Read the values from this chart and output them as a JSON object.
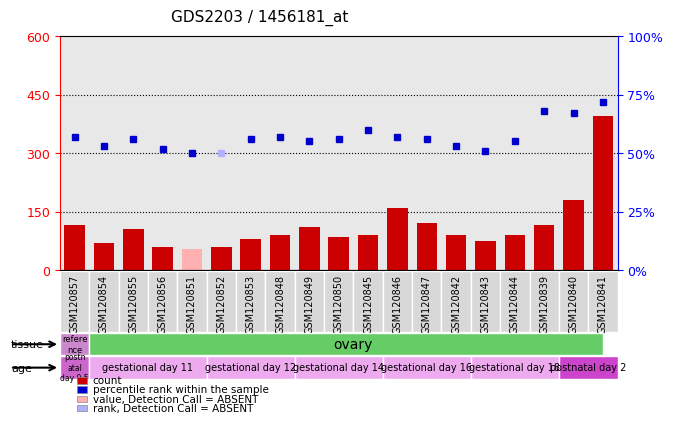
{
  "title": "GDS2203 / 1456181_at",
  "samples": [
    "GSM120857",
    "GSM120854",
    "GSM120855",
    "GSM120856",
    "GSM120851",
    "GSM120852",
    "GSM120853",
    "GSM120848",
    "GSM120849",
    "GSM120850",
    "GSM120845",
    "GSM120846",
    "GSM120847",
    "GSM120842",
    "GSM120843",
    "GSM120844",
    "GSM120839",
    "GSM120840",
    "GSM120841"
  ],
  "counts": [
    115,
    70,
    105,
    60,
    55,
    60,
    80,
    90,
    110,
    85,
    90,
    160,
    120,
    90,
    75,
    90,
    115,
    180,
    395
  ],
  "absent_count_flags": [
    false,
    false,
    false,
    false,
    true,
    false,
    false,
    false,
    false,
    false,
    false,
    false,
    false,
    false,
    false,
    false,
    false,
    false,
    false
  ],
  "percentile_ranks": [
    57,
    53,
    56,
    52,
    50,
    50,
    56,
    57,
    55,
    56,
    60,
    57,
    56,
    53,
    51,
    55,
    68,
    67,
    72
  ],
  "absent_rank_flags": [
    false,
    false,
    false,
    false,
    false,
    true,
    false,
    false,
    false,
    false,
    false,
    false,
    false,
    false,
    false,
    false,
    false,
    false,
    false
  ],
  "ylim_left": [
    0,
    600
  ],
  "ylim_right": [
    0,
    100
  ],
  "yticks_left": [
    0,
    150,
    300,
    450,
    600
  ],
  "yticks_right": [
    0,
    25,
    50,
    75,
    100
  ],
  "hlines": [
    150,
    300,
    450
  ],
  "bar_color_normal": "#cc0000",
  "bar_color_absent": "#ffb0b0",
  "dot_color_normal": "#0000cc",
  "dot_color_absent": "#b0b0ff",
  "tissue_ref_label": "refere\nnce",
  "tissue_ref_color": "#cc88cc",
  "tissue_main_label": "ovary",
  "tissue_main_color": "#66cc66",
  "age_ref_label": "postn\natal\nday 0.5",
  "age_ref_color": "#cc66cc",
  "age_groups": [
    {
      "label": "gestational day 11",
      "color": "#eeaaee",
      "start": 1,
      "end": 4
    },
    {
      "label": "gestational day 12",
      "color": "#eeaaee",
      "start": 5,
      "end": 7
    },
    {
      "label": "gestational day 14",
      "color": "#eeaaee",
      "start": 8,
      "end": 10
    },
    {
      "label": "gestational day 16",
      "color": "#eeaaee",
      "start": 11,
      "end": 13
    },
    {
      "label": "gestational day 18",
      "color": "#eeaaee",
      "start": 14,
      "end": 16
    },
    {
      "label": "postnatal day 2",
      "color": "#cc44cc",
      "start": 17,
      "end": 18
    }
  ],
  "legend_items": [
    {
      "color": "#cc0000",
      "label": "count"
    },
    {
      "color": "#0000cc",
      "label": "percentile rank within the sample"
    },
    {
      "color": "#ffb0b0",
      "label": "value, Detection Call = ABSENT"
    },
    {
      "color": "#b0b0ff",
      "label": "rank, Detection Call = ABSENT"
    }
  ],
  "plot_bg": "#e8e8e8",
  "xtick_bg": "#d0d0d0",
  "title_fontsize": 11,
  "tick_fontsize": 7
}
